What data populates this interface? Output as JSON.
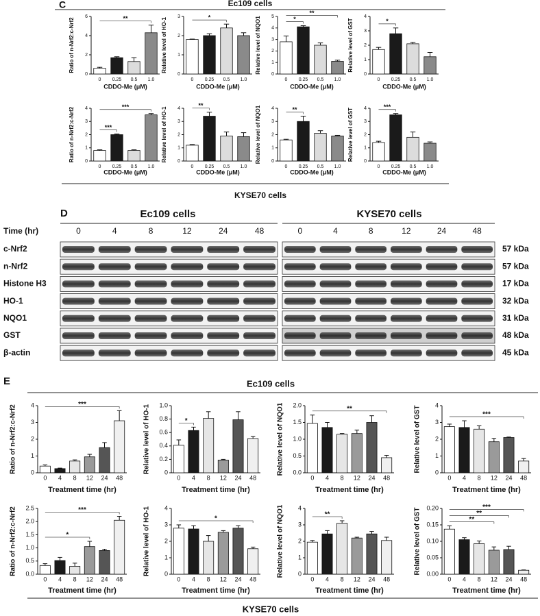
{
  "panels": {
    "C": {
      "label": "C",
      "top": "Ec109 cells",
      "bottom": "KYSE70 cells"
    },
    "E": {
      "label": "E",
      "top": "Ec109 cells",
      "bottom": "KYSE70 cells"
    }
  },
  "blot": {
    "label": "D",
    "headers": [
      "Ec109 cells",
      "KYSE70 cells"
    ],
    "time_label": "Time (hr)",
    "times": [
      "0",
      "4",
      "8",
      "12",
      "24",
      "48"
    ],
    "rows": [
      {
        "name": "c-Nrf2",
        "kda": "57 kDa"
      },
      {
        "name": "n-Nrf2",
        "kda": "57 kDa"
      },
      {
        "name": "Histone H3",
        "kda": "17 kDa"
      },
      {
        "name": "HO-1",
        "kda": "32 kDa"
      },
      {
        "name": "NQO1",
        "kda": "31 kDa"
      },
      {
        "name": "GST",
        "kda": "48 kDa"
      },
      {
        "name": "β-actin",
        "kda": "45 kDa"
      }
    ]
  },
  "chart_data": [
    {
      "type": "bar",
      "y_label": "Ratio of n-Nrf2:c-Nrf2",
      "x_label": "CDDO-Me (μM)",
      "categories": [
        "0",
        "0.25",
        "0.5",
        "1.0"
      ],
      "values": [
        0.6,
        1.7,
        1.3,
        4.3
      ],
      "errors": [
        0.1,
        0.1,
        0.4,
        0.8
      ],
      "colors": [
        "#ffffff",
        "#1a1a1a",
        "#dcdcdc",
        "#8a8a8a"
      ],
      "ylim": [
        0,
        6
      ],
      "yticks": [
        0,
        2,
        4,
        6
      ],
      "annotations": [
        {
          "text": "**",
          "between": [
            "0",
            "1.0"
          ]
        }
      ]
    },
    {
      "type": "bar",
      "y_label": "Relative level of HO-1",
      "x_label": "CDDO-Me (μM)",
      "categories": [
        "0",
        "0.25",
        "0.5",
        "1.0"
      ],
      "values": [
        1.8,
        2.0,
        2.4,
        2.0
      ],
      "errors": [
        0.02,
        0.1,
        0.2,
        0.15
      ],
      "colors": [
        "#ffffff",
        "#1a1a1a",
        "#dcdcdc",
        "#8a8a8a"
      ],
      "ylim": [
        0,
        3
      ],
      "yticks": [
        0,
        1,
        2,
        3
      ],
      "annotations": [
        {
          "text": "*",
          "between": [
            "0",
            "0.5"
          ]
        }
      ]
    },
    {
      "type": "bar",
      "y_label": "Relative level of NQO1",
      "x_label": "CDDO-Me (μM)",
      "categories": [
        "0",
        "0.25",
        "0.5",
        "1.0"
      ],
      "values": [
        2.8,
        4.1,
        2.5,
        1.1
      ],
      "errors": [
        0.5,
        0.1,
        0.2,
        0.1
      ],
      "colors": [
        "#ffffff",
        "#1a1a1a",
        "#dcdcdc",
        "#8a8a8a"
      ],
      "ylim": [
        0,
        5
      ],
      "yticks": [
        0,
        1,
        2,
        3,
        4,
        5
      ],
      "annotations": [
        {
          "text": "*",
          "between": [
            "0",
            "0.25"
          ]
        },
        {
          "text": "**",
          "between": [
            "0",
            "1.0"
          ]
        }
      ]
    },
    {
      "type": "bar",
      "y_label": "Relative level of GST",
      "x_label": "CDDO-Me (μM)",
      "categories": [
        "0",
        "0.25",
        "0.5",
        "1.0"
      ],
      "values": [
        1.7,
        2.8,
        2.1,
        1.2
      ],
      "errors": [
        0.15,
        0.4,
        0.1,
        0.3
      ],
      "colors": [
        "#ffffff",
        "#1a1a1a",
        "#dcdcdc",
        "#8a8a8a"
      ],
      "ylim": [
        0,
        4
      ],
      "yticks": [
        0,
        1,
        2,
        3,
        4
      ],
      "annotations": [
        {
          "text": "*",
          "between": [
            "0",
            "0.25"
          ]
        }
      ]
    },
    {
      "type": "bar",
      "y_label": "Ratio of n-Nrf2:c-Nrf2",
      "x_label": "CDDO-Me (μM)",
      "categories": [
        "0",
        "0.25",
        "0.5",
        "1.0"
      ],
      "values": [
        0.8,
        2.0,
        0.8,
        3.5
      ],
      "errors": [
        0.05,
        0.05,
        0.05,
        0.1
      ],
      "colors": [
        "#ffffff",
        "#1a1a1a",
        "#dcdcdc",
        "#8a8a8a"
      ],
      "ylim": [
        0,
        4
      ],
      "yticks": [
        0,
        1,
        2,
        3,
        4
      ],
      "annotations": [
        {
          "text": "***",
          "between": [
            "0",
            "0.25"
          ]
        },
        {
          "text": "***",
          "between": [
            "0",
            "1.0"
          ]
        }
      ]
    },
    {
      "type": "bar",
      "y_label": "Relative level of HO-1",
      "x_label": "CDDO-Me (μM)",
      "categories": [
        "0",
        "0.25",
        "0.5",
        "1.0"
      ],
      "values": [
        1.2,
        3.4,
        1.9,
        1.85
      ],
      "errors": [
        0.05,
        0.3,
        0.3,
        0.3
      ],
      "colors": [
        "#ffffff",
        "#1a1a1a",
        "#dcdcdc",
        "#8a8a8a"
      ],
      "ylim": [
        0,
        4
      ],
      "yticks": [
        0,
        1,
        2,
        3,
        4
      ],
      "annotations": [
        {
          "text": "**",
          "between": [
            "0",
            "0.25"
          ]
        }
      ]
    },
    {
      "type": "bar",
      "y_label": "Relative level of NQO1",
      "x_label": "CDDO-Me (μM)",
      "categories": [
        "0",
        "0.25",
        "0.5",
        "1.0"
      ],
      "values": [
        1.6,
        3.0,
        2.1,
        1.9
      ],
      "errors": [
        0.05,
        0.4,
        0.2,
        0.05
      ],
      "colors": [
        "#ffffff",
        "#1a1a1a",
        "#dcdcdc",
        "#8a8a8a"
      ],
      "ylim": [
        0,
        4
      ],
      "yticks": [
        0,
        1,
        2,
        3,
        4
      ],
      "annotations": [
        {
          "text": "**",
          "between": [
            "0",
            "0.25"
          ]
        }
      ]
    },
    {
      "type": "bar",
      "y_label": "Relative level of GST",
      "x_label": "CDDO-Me (μM)",
      "categories": [
        "0",
        "0.25",
        "0.5",
        "1.0"
      ],
      "values": [
        1.4,
        3.5,
        1.8,
        1.35
      ],
      "errors": [
        0.1,
        0.1,
        0.4,
        0.1
      ],
      "colors": [
        "#ffffff",
        "#1a1a1a",
        "#dcdcdc",
        "#8a8a8a"
      ],
      "ylim": [
        0,
        4
      ],
      "yticks": [
        0,
        1,
        2,
        3,
        4
      ],
      "annotations": [
        {
          "text": "***",
          "between": [
            "0",
            "0.25"
          ]
        }
      ]
    },
    {
      "type": "bar",
      "y_label": "Ratio of n-Nrf2:c-Nrf2",
      "x_label": "Treatment time (hr)",
      "categories": [
        "0",
        "4",
        "8",
        "12",
        "24",
        "48"
      ],
      "values": [
        0.4,
        0.25,
        0.7,
        0.95,
        1.5,
        3.1
      ],
      "errors": [
        0.07,
        0.03,
        0.07,
        0.15,
        0.3,
        0.6
      ],
      "colors": [
        "#ffffff",
        "#1a1a1a",
        "#e6e6e6",
        "#9a9a9a",
        "#555555",
        "#f0f0f0"
      ],
      "ylim": [
        0,
        4
      ],
      "yticks": [
        0,
        1,
        2,
        3,
        4
      ],
      "annotations": [
        {
          "text": "***",
          "between": [
            "0",
            "48"
          ]
        }
      ]
    },
    {
      "type": "bar",
      "y_label": "Relative level of HO-1",
      "x_label": "Treatment time (hr)",
      "categories": [
        "0",
        "4",
        "8",
        "12",
        "24",
        "48"
      ],
      "values": [
        0.41,
        0.63,
        0.81,
        0.19,
        0.79,
        0.51
      ],
      "errors": [
        0.08,
        0.05,
        0.1,
        0.01,
        0.12,
        0.03
      ],
      "colors": [
        "#ffffff",
        "#1a1a1a",
        "#e6e6e6",
        "#9a9a9a",
        "#555555",
        "#f0f0f0"
      ],
      "ylim": [
        0,
        1
      ],
      "yticks": [
        0,
        0.2,
        0.4,
        0.6,
        0.8,
        {
          "value": 1,
          "label": "1.0"
        }
      ],
      "annotations": [
        {
          "text": "*",
          "between": [
            "0",
            "4"
          ]
        }
      ]
    },
    {
      "type": "bar",
      "y_label": "Relative level of NQO1",
      "x_label": "Treatment time (hr)",
      "categories": [
        "0",
        "4",
        "8",
        "12",
        "24",
        "48"
      ],
      "values": [
        1.47,
        1.35,
        1.15,
        1.17,
        1.5,
        0.45
      ],
      "errors": [
        0.25,
        0.15,
        0.02,
        0.1,
        0.2,
        0.07
      ],
      "colors": [
        "#ffffff",
        "#1a1a1a",
        "#e6e6e6",
        "#9a9a9a",
        "#555555",
        "#f0f0f0"
      ],
      "ylim": [
        0,
        2
      ],
      "yticks": [
        {
          "value": 0,
          "label": "0.0"
        },
        0.5,
        {
          "value": 1,
          "label": "1.0"
        },
        1.5,
        {
          "value": 2,
          "label": "2.0"
        }
      ],
      "annotations": [
        {
          "text": "**",
          "between": [
            "0",
            "48"
          ]
        }
      ]
    },
    {
      "type": "bar",
      "y_label": "Relative level of GST",
      "x_label": "Treatment time (hr)",
      "categories": [
        "0",
        "4",
        "8",
        "12",
        "24",
        "48"
      ],
      "values": [
        2.75,
        2.7,
        2.6,
        1.85,
        2.1,
        0.7
      ],
      "errors": [
        0.15,
        0.4,
        0.2,
        0.2,
        0.03,
        0.15
      ],
      "colors": [
        "#ffffff",
        "#1a1a1a",
        "#e6e6e6",
        "#9a9a9a",
        "#555555",
        "#f0f0f0"
      ],
      "ylim": [
        0,
        4
      ],
      "yticks": [
        0,
        1,
        2,
        3,
        4
      ],
      "annotations": [
        {
          "text": "***",
          "between": [
            "0",
            "48"
          ]
        }
      ]
    },
    {
      "type": "bar",
      "y_label": "Ratio of n-Nrf2:c-Nrf2",
      "x_label": "Treatment time (hr)",
      "categories": [
        "0",
        "4",
        "8",
        "12",
        "24",
        "48"
      ],
      "values": [
        0.33,
        0.52,
        0.3,
        1.05,
        0.9,
        2.05
      ],
      "errors": [
        0.07,
        0.12,
        0.12,
        0.2,
        0.05,
        0.15
      ],
      "colors": [
        "#ffffff",
        "#1a1a1a",
        "#e6e6e6",
        "#9a9a9a",
        "#555555",
        "#f0f0f0"
      ],
      "ylim": [
        0,
        2.5
      ],
      "yticks": [
        {
          "value": 0,
          "label": "0.0"
        },
        0.5,
        {
          "value": 1,
          "label": "1.0"
        },
        1.5,
        {
          "value": 2,
          "label": "2.0"
        },
        2.5
      ],
      "annotations": [
        {
          "text": "*",
          "between": [
            "0",
            "12"
          ]
        },
        {
          "text": "***",
          "between": [
            "0",
            "48"
          ]
        }
      ]
    },
    {
      "type": "bar",
      "y_label": "Relative level of HO-1",
      "x_label": "Treatment time (hr)",
      "categories": [
        "0",
        "4",
        "8",
        "12",
        "24",
        "48"
      ],
      "values": [
        2.8,
        2.75,
        2.0,
        2.55,
        2.8,
        1.55
      ],
      "errors": [
        0.2,
        0.2,
        0.35,
        0.1,
        0.15,
        0.1
      ],
      "colors": [
        "#ffffff",
        "#1a1a1a",
        "#e6e6e6",
        "#9a9a9a",
        "#555555",
        "#f0f0f0"
      ],
      "ylim": [
        0,
        4
      ],
      "yticks": [
        0,
        1,
        2,
        3,
        4
      ],
      "annotations": [
        {
          "text": "*",
          "between": [
            "0",
            "48"
          ]
        }
      ]
    },
    {
      "type": "bar",
      "y_label": "Relative level of NQO1",
      "x_label": "Treatment time (hr)",
      "categories": [
        "0",
        "4",
        "8",
        "12",
        "24",
        "48"
      ],
      "values": [
        1.95,
        2.45,
        3.1,
        2.2,
        2.45,
        2.05
      ],
      "errors": [
        0.1,
        0.2,
        0.15,
        0.05,
        0.15,
        0.2
      ],
      "colors": [
        "#ffffff",
        "#1a1a1a",
        "#e6e6e6",
        "#9a9a9a",
        "#555555",
        "#f0f0f0"
      ],
      "ylim": [
        0,
        4
      ],
      "yticks": [
        0,
        1,
        2,
        3,
        4
      ],
      "annotations": [
        {
          "text": "**",
          "between": [
            "0",
            "8"
          ]
        }
      ]
    },
    {
      "type": "bar",
      "y_label": "Relative level of GST",
      "x_label": "Treatment time (hr)",
      "categories": [
        "0",
        "4",
        "8",
        "12",
        "24",
        "48"
      ],
      "values": [
        0.137,
        0.105,
        0.093,
        0.073,
        0.075,
        0.012
      ],
      "errors": [
        0.01,
        0.006,
        0.008,
        0.01,
        0.01,
        0.001
      ],
      "colors": [
        "#ffffff",
        "#1a1a1a",
        "#e6e6e6",
        "#9a9a9a",
        "#555555",
        "#f0f0f0"
      ],
      "ylim": [
        0,
        0.2
      ],
      "yticks": [
        {
          "value": 0,
          "label": "0.00"
        },
        0.05,
        {
          "value": 0.1,
          "label": "0.10"
        },
        0.15,
        {
          "value": 0.2,
          "label": "0.20"
        }
      ],
      "annotations": [
        {
          "text": "**",
          "between": [
            "0",
            "12"
          ]
        },
        {
          "text": "**",
          "between": [
            "0",
            "24"
          ]
        },
        {
          "text": "***",
          "between": [
            "0",
            "48"
          ]
        }
      ]
    }
  ]
}
